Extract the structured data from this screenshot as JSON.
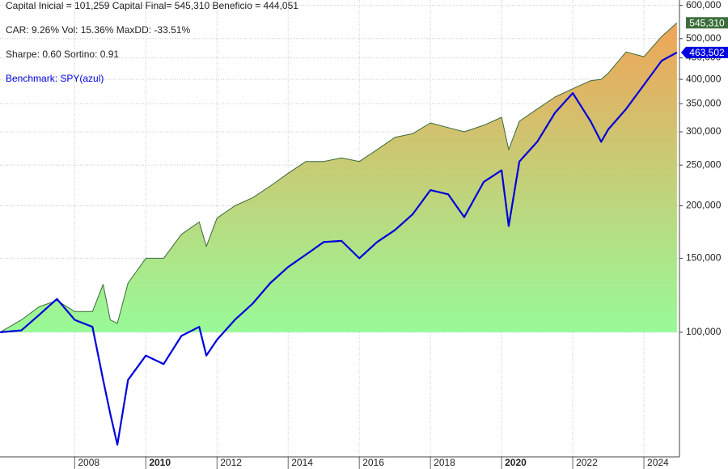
{
  "chart_data": {
    "type": "line",
    "stats": [
      "Capital Inicial = 101,259    Capital Final= 545,310    Beneficio = 444,051",
      "CAR: 9.26%   Vol: 15.36%   MaxDD: -33.51%",
      "Sharpe: 0.60   Sortino: 0.91"
    ],
    "log_scale": true,
    "grid": true,
    "x": [
      2005.9,
      2006.5,
      2007.0,
      2007.5,
      2008.0,
      2008.5,
      2008.8,
      2009.0,
      2009.2,
      2009.5,
      2010.0,
      2010.5,
      2011.0,
      2011.5,
      2011.7,
      2012.0,
      2012.5,
      2013.0,
      2013.5,
      2014.0,
      2014.5,
      2015.0,
      2015.5,
      2016.0,
      2016.5,
      2017.0,
      2017.5,
      2018.0,
      2018.5,
      2018.95,
      2019.5,
      2020.0,
      2020.2,
      2020.5,
      2021.0,
      2021.5,
      2022.0,
      2022.5,
      2022.8,
      2023.0,
      2023.5,
      2024.0,
      2024.5,
      2024.93
    ],
    "series": [
      {
        "color": "#3a6a3a",
        "label_color": "#3c6e3c",
        "values": [
          100000,
          107000,
          115000,
          119000,
          112000,
          112000,
          130000,
          107000,
          105000,
          131000,
          150000,
          150000,
          171000,
          183000,
          160000,
          187000,
          200000,
          209000,
          223000,
          239000,
          255000,
          255000,
          260000,
          255000,
          272000,
          291000,
          297000,
          315000,
          307000,
          300000,
          311000,
          325000,
          272000,
          318000,
          340000,
          363000,
          380000,
          397000,
          400000,
          414000,
          465000,
          453000,
          506000,
          545310
        ],
        "value_labels": [
          null,
          null,
          null,
          null,
          null,
          null,
          null,
          null,
          null,
          null,
          null,
          null,
          null,
          null,
          null,
          null,
          null,
          null,
          null,
          null,
          null,
          null,
          null,
          null,
          null,
          null,
          null,
          null,
          null,
          null,
          null,
          null,
          null,
          null,
          null,
          null,
          null,
          null,
          null,
          null,
          null,
          null,
          null,
          "545,310"
        ]
      },
      {
        "name": "Benchmark: SPY(azul)",
        "color": "#0000dd",
        "label_color": "#0000e0",
        "values": [
          100000,
          101000,
          110000,
          120000,
          107000,
          103000,
          77000,
          64000,
          54000,
          77000,
          88000,
          84000,
          98000,
          103000,
          88000,
          96000,
          107000,
          117000,
          131000,
          143000,
          153000,
          164000,
          165000,
          150000,
          164000,
          175000,
          191000,
          218000,
          213000,
          188000,
          228000,
          243000,
          179000,
          255000,
          284000,
          333000,
          371000,
          318000,
          284000,
          304000,
          340000,
          388000,
          443000,
          463502
        ],
        "value_labels": [
          null,
          null,
          null,
          null,
          null,
          null,
          null,
          null,
          null,
          null,
          null,
          null,
          null,
          null,
          null,
          null,
          null,
          null,
          null,
          null,
          null,
          null,
          null,
          null,
          null,
          null,
          null,
          null,
          null,
          null,
          null,
          null,
          null,
          null,
          null,
          null,
          null,
          null,
          null,
          null,
          null,
          null,
          null,
          "463,502"
        ]
      }
    ],
    "area_colors": [
      "#f0a458",
      "#98fa98"
    ],
    "xlim": [
      2005.9,
      2025.0
    ],
    "xticks": [
      2008,
      2010,
      2012,
      2014,
      2016,
      2018,
      2020,
      2022,
      2024
    ],
    "ylim": [
      50500,
      618000
    ],
    "yticks": [
      {
        "value": 100000,
        "label": "100,000"
      },
      {
        "value": 150000,
        "label": "150,000"
      },
      {
        "value": 200000,
        "label": "200,000"
      },
      {
        "value": 250000,
        "label": "250,000"
      },
      {
        "value": 300000,
        "label": "300,000"
      },
      {
        "value": 350000,
        "label": "350,000"
      },
      {
        "value": 400000,
        "label": "400,000"
      },
      {
        "value": 450000,
        "label": "450,000"
      },
      {
        "value": 500000,
        "label": "500,000"
      },
      {
        "value": 600000,
        "label": "600,000"
      }
    ]
  }
}
